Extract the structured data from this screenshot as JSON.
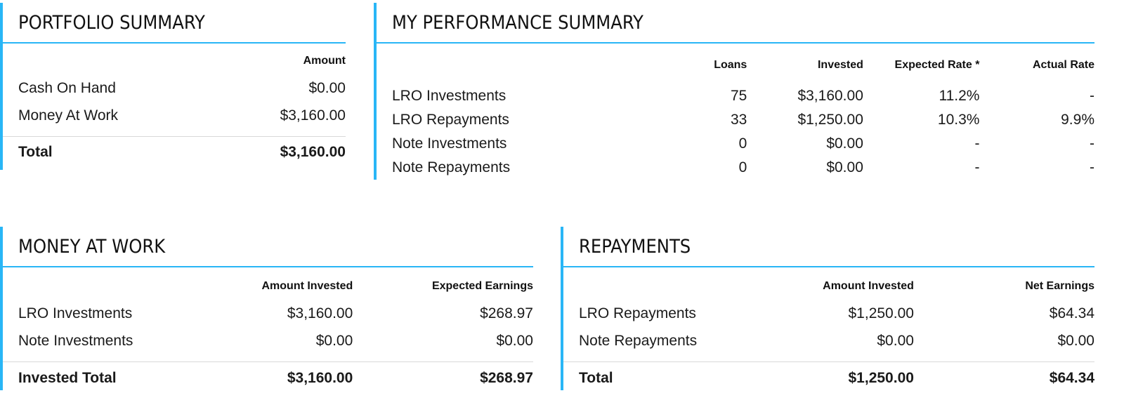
{
  "portfolio_summary": {
    "title": "PORTFOLIO SUMMARY",
    "header_amount": "Amount",
    "rows": [
      {
        "label": "Cash On Hand",
        "amount": "$0.00"
      },
      {
        "label": "Money At Work",
        "amount": "$3,160.00"
      }
    ],
    "total": {
      "label": "Total",
      "amount": "$3,160.00"
    }
  },
  "performance_summary": {
    "title": "MY PERFORMANCE SUMMARY",
    "headers": {
      "loans": "Loans",
      "invested": "Invested",
      "expected_rate": "Expected Rate *",
      "actual_rate": "Actual Rate"
    },
    "rows": [
      {
        "label": "LRO Investments",
        "loans": "75",
        "invested": "$3,160.00",
        "expected_rate": "11.2%",
        "actual_rate": "-"
      },
      {
        "label": "LRO Repayments",
        "loans": "33",
        "invested": "$1,250.00",
        "expected_rate": "10.3%",
        "actual_rate": "9.9%"
      },
      {
        "label": "Note Investments",
        "loans": "0",
        "invested": "$0.00",
        "expected_rate": "-",
        "actual_rate": "-"
      },
      {
        "label": "Note Repayments",
        "loans": "0",
        "invested": "$0.00",
        "expected_rate": "-",
        "actual_rate": "-"
      }
    ]
  },
  "money_at_work": {
    "title": "MONEY AT WORK",
    "headers": {
      "amount_invested": "Amount Invested",
      "expected_earnings": "Expected Earnings"
    },
    "rows": [
      {
        "label": "LRO Investments",
        "amount_invested": "$3,160.00",
        "expected_earnings": "$268.97"
      },
      {
        "label": "Note Investments",
        "amount_invested": "$0.00",
        "expected_earnings": "$0.00"
      }
    ],
    "total": {
      "label": "Invested Total",
      "amount_invested": "$3,160.00",
      "expected_earnings": "$268.97"
    }
  },
  "repayments": {
    "title": "REPAYMENTS",
    "headers": {
      "amount_invested": "Amount Invested",
      "net_earnings": "Net Earnings"
    },
    "rows": [
      {
        "label": "LRO Repayments",
        "amount_invested": "$1,250.00",
        "net_earnings": "$64.34"
      },
      {
        "label": "Note Repayments",
        "amount_invested": "$0.00",
        "net_earnings": "$0.00"
      }
    ],
    "total": {
      "label": "Total",
      "amount_invested": "$1,250.00",
      "net_earnings": "$64.34"
    }
  },
  "colors": {
    "accent": "#29b6f6",
    "divider": "#d9d9d9",
    "text": "#1a1a1a"
  }
}
